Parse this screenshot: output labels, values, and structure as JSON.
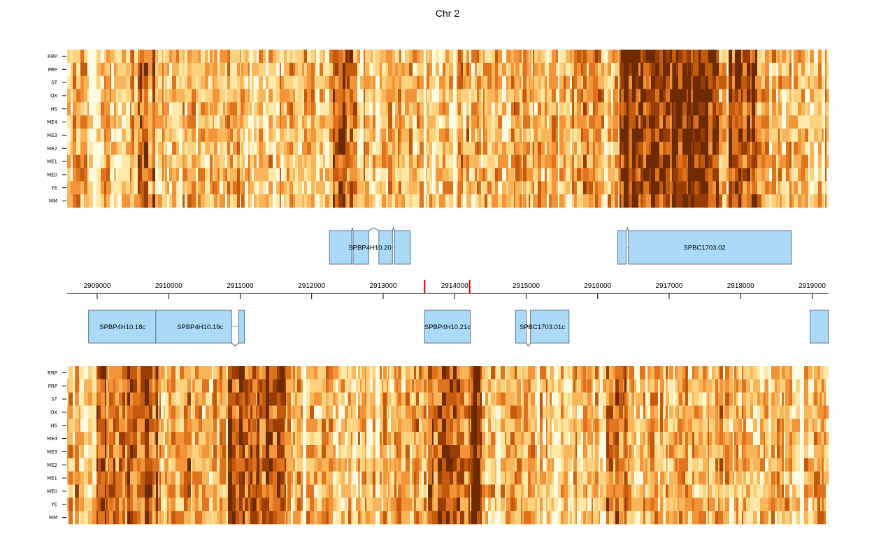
{
  "chart_data": {
    "type": "heatmap",
    "title": "Chr 2",
    "rows_top": [
      "RRP",
      "PRP",
      "ST",
      "OX",
      "HS",
      "ME4",
      "ME3",
      "ME2",
      "ME1",
      "ME0",
      "YE",
      "MM"
    ],
    "rows_bottom": [
      "RRP",
      "PRP",
      "ST",
      "OX",
      "HS",
      "ME4",
      "ME3",
      "ME2",
      "ME1",
      "ME0",
      "YE",
      "MM"
    ],
    "xlim": [
      2908580,
      2919230
    ],
    "ticks": [
      {
        "value": 2909000,
        "label": "2909000"
      },
      {
        "value": 2910000,
        "label": "2910000"
      },
      {
        "value": 2911000,
        "label": "2911000"
      },
      {
        "value": 2912000,
        "label": "2912000"
      },
      {
        "value": 2913000,
        "label": "2913000"
      },
      {
        "value": 2914000,
        "label": "2914000"
      },
      {
        "value": 2915000,
        "label": "2915000"
      },
      {
        "value": 2916000,
        "label": "2916000"
      },
      {
        "value": 2917000,
        "label": "2917000"
      },
      {
        "value": 2918000,
        "label": "2918000"
      },
      {
        "value": 2919000,
        "label": "2919000"
      }
    ],
    "highlight_region": [
      2913580,
      2914210
    ],
    "genes_forward": [
      {
        "name": "SPBP4H10.20",
        "exons": [
          [
            2912250,
            2912560
          ],
          [
            2912580,
            2912800
          ],
          [
            2912940,
            2913130
          ],
          [
            2913160,
            2913380
          ]
        ]
      },
      {
        "name": "SPBC1703.02",
        "exons": [
          [
            2916280,
            2916400
          ],
          [
            2916430,
            2918710
          ]
        ]
      }
    ],
    "genes_reverse": [
      {
        "name": "SPBP4H10.18c",
        "exons": [
          [
            2908880,
            2909830
          ]
        ]
      },
      {
        "name": "SPBP4H10.19c",
        "exons": [
          [
            2909820,
            2910880
          ],
          [
            2910980,
            2911060
          ]
        ]
      },
      {
        "name": "SPBP4H10.21c",
        "exons": [
          [
            2913580,
            2914220
          ]
        ]
      },
      {
        "name": "SPBC1703.01c",
        "exons": [
          [
            2914850,
            2915000
          ],
          [
            2915060,
            2915600
          ]
        ]
      },
      {
        "name": "",
        "exons": [
          [
            2918970,
            2919230
          ]
        ]
      }
    ],
    "color_scale": [
      "#fffbe0",
      "#ffe9a8",
      "#fdd27e",
      "#f9b55a",
      "#f39438",
      "#e0731d",
      "#c45a0c",
      "#9a3d05",
      "#6e2a03"
    ],
    "dark_regions_top": [
      [
        2912300,
        2912620,
        0.35
      ],
      [
        2916300,
        2917700,
        0.55
      ],
      [
        2917850,
        2918250,
        0.4
      ],
      [
        2909550,
        2909800,
        0.25
      ],
      [
        2915900,
        2916100,
        0.15
      ]
    ],
    "dark_regions_bottom": [
      [
        2909000,
        2909850,
        0.35
      ],
      [
        2910850,
        2911650,
        0.45
      ],
      [
        2913650,
        2914300,
        0.35
      ],
      [
        2914280,
        2914380,
        0.5
      ],
      [
        2916100,
        2916400,
        0.35
      ],
      [
        2910000,
        2910300,
        0.2
      ]
    ]
  }
}
